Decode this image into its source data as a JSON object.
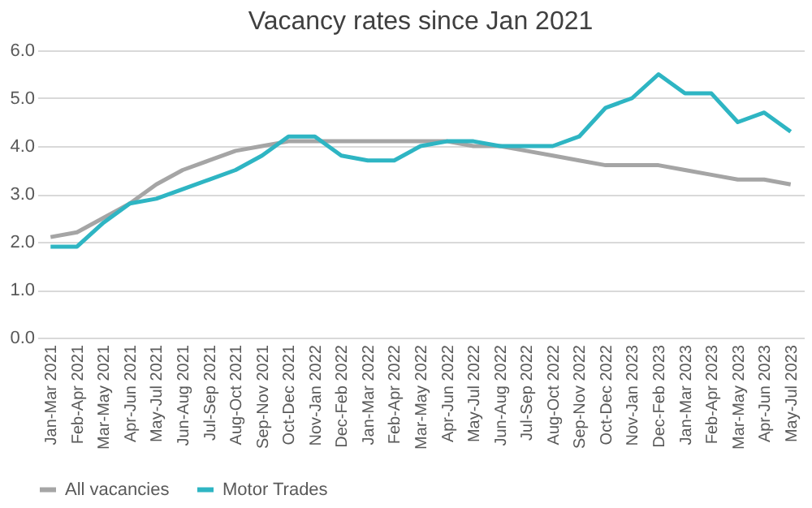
{
  "chart_data": {
    "type": "line",
    "title": "Vacancy rates since Jan 2021",
    "categories": [
      "Jan-Mar 2021",
      "Feb-Apr 2021",
      "Mar-May 2021",
      "Apr-Jun 2021",
      "May-Jul 2021",
      "Jun-Aug 2021",
      "Jul-Sep 2021",
      "Aug-Oct 2021",
      "Sep-Nov 2021",
      "Oct-Dec 2021",
      "Nov-Jan 2022",
      "Dec-Feb 2022",
      "Jan-Mar 2022",
      "Feb-Apr 2022",
      "Mar-May 2022",
      "Apr-Jun 2022",
      "May-Jul 2022",
      "Jun-Aug 2022",
      "Jul-Sep 2022",
      "Aug-Oct 2022",
      "Sep-Nov 2022",
      "Oct-Dec 2022",
      "Nov-Jan 2023",
      "Dec-Feb 2023",
      "Jan-Mar 2023",
      "Feb-Apr 2023",
      "Mar-May 2023",
      "Apr-Jun 2023",
      "May-Jul 2023"
    ],
    "series": [
      {
        "name": "All vacancies",
        "color": "#a5a5a5",
        "values": [
          2.1,
          2.2,
          2.5,
          2.8,
          3.2,
          3.5,
          3.7,
          3.9,
          4.0,
          4.1,
          4.1,
          4.1,
          4.1,
          4.1,
          4.1,
          4.1,
          4.0,
          4.0,
          3.9,
          3.8,
          3.7,
          3.6,
          3.6,
          3.6,
          3.5,
          3.4,
          3.3,
          3.3,
          3.2
        ]
      },
      {
        "name": "Motor Trades",
        "color": "#2eb5c3",
        "values": [
          1.9,
          1.9,
          2.4,
          2.8,
          2.9,
          3.1,
          3.3,
          3.5,
          3.8,
          4.2,
          4.2,
          3.8,
          3.7,
          3.7,
          4.0,
          4.1,
          4.1,
          4.0,
          4.0,
          4.0,
          4.2,
          4.8,
          5.0,
          5.5,
          5.1,
          5.1,
          4.5,
          4.7,
          4.3
        ]
      }
    ],
    "ylim": [
      0,
      6
    ],
    "yticks": [
      {
        "value": 0,
        "label": "0.0"
      },
      {
        "value": 1,
        "label": "1.0"
      },
      {
        "value": 2,
        "label": "2.0"
      },
      {
        "value": 3,
        "label": "3.0"
      },
      {
        "value": 4,
        "label": "4.0"
      },
      {
        "value": 5,
        "label": "5.0"
      },
      {
        "value": 6,
        "label": "6.0"
      }
    ],
    "grid": "y",
    "legend": "bottom",
    "marker": "none",
    "line_style": "solid"
  }
}
